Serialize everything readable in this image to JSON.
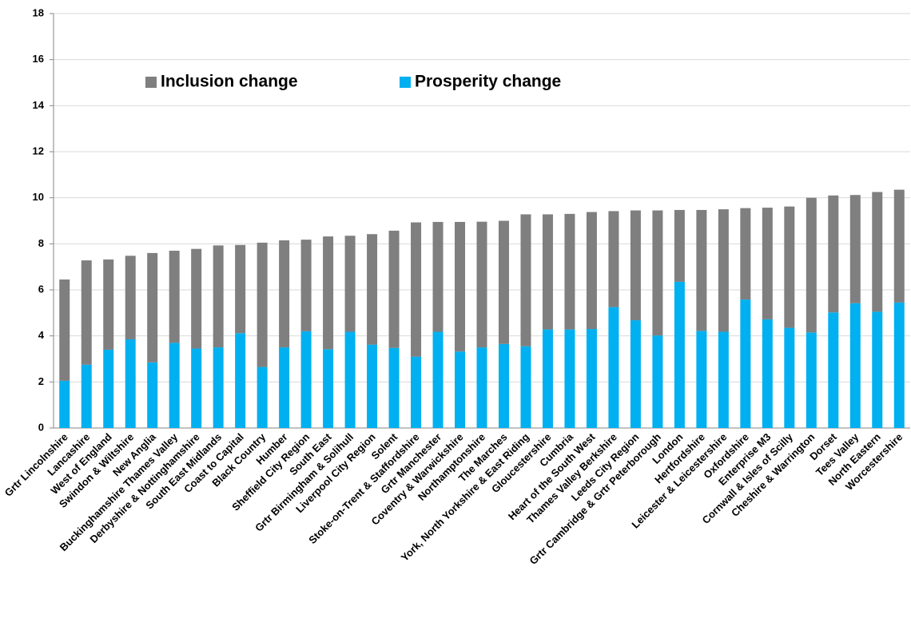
{
  "chart_data": {
    "type": "stacked_bar",
    "categories": [
      "Grtr Lincolnshire",
      "Lancashire",
      "West of England",
      "Swindon & Wiltshire",
      "New Anglia",
      "Buckinghamshire Thames Valley",
      "Derbyshire & Nottinghamshire",
      "South East Midlands",
      "Coast to Capital",
      "Black Country",
      "Humber",
      "Sheffield City Region",
      "South East",
      "Grtr Birmingham & Solihull",
      "Liverpool City Region",
      "Solent",
      "Stoke-on-Trent & Staffordshire",
      "Grtr Manchester",
      "Coventry & Warwickshire",
      "Northamptonshire",
      "The Marches",
      "York, North Yorkshire & East Riding",
      "Gloucestershire",
      "Cumbria",
      "Heart of the South West",
      "Thames Valley Berkshire",
      "Leeds City Region",
      "Grtr Cambridge & Grtr Peterborough",
      "London",
      "Hertfordshire",
      "Leicester & Leicestershire",
      "Oxfordshire",
      "Enterprise M3",
      "Cornwall & Isles of Scilly",
      "Cheshire & Warrington",
      "Dorset",
      "Tees Valley",
      "North Eastern",
      "Worcestershire"
    ],
    "series": [
      {
        "name": "Prosperity change",
        "color": "#00b0f0",
        "values": [
          2.05,
          2.75,
          3.4,
          3.85,
          2.85,
          3.7,
          3.45,
          3.5,
          4.12,
          2.65,
          3.5,
          4.2,
          3.42,
          4.18,
          3.62,
          3.48,
          3.1,
          4.18,
          3.32,
          3.5,
          3.65,
          3.55,
          4.28,
          4.28,
          4.3,
          5.25,
          4.68,
          4.02,
          6.35,
          4.22,
          4.18,
          5.58,
          4.72,
          4.35,
          4.15,
          5.02,
          5.42,
          5.05,
          5.45
        ]
      },
      {
        "name": "Inclusion change",
        "color": "#7f7f7f",
        "values": [
          4.4,
          4.53,
          3.92,
          3.63,
          4.75,
          4.0,
          4.33,
          4.43,
          3.83,
          5.4,
          4.65,
          3.98,
          4.9,
          4.17,
          4.8,
          5.09,
          5.83,
          4.77,
          5.63,
          5.46,
          5.35,
          5.73,
          5.0,
          5.02,
          5.08,
          4.17,
          4.77,
          5.43,
          3.12,
          5.25,
          5.32,
          3.97,
          4.85,
          5.27,
          5.85,
          5.08,
          4.7,
          5.2,
          4.9
        ]
      }
    ],
    "ylim": [
      0,
      18
    ],
    "yticks": [
      0,
      2,
      4,
      6,
      8,
      10,
      12,
      14,
      16,
      18
    ],
    "grid": true
  }
}
